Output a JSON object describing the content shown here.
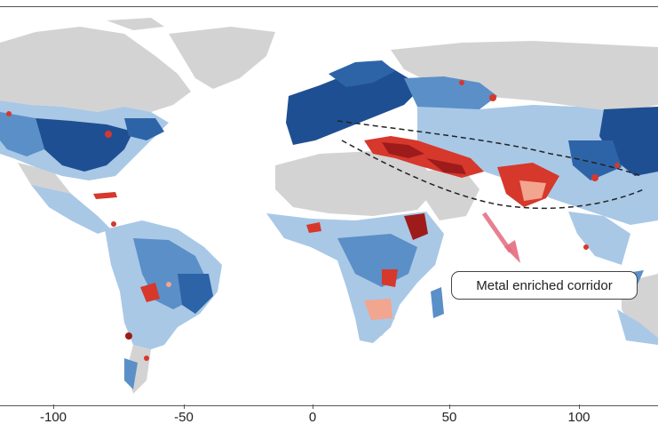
{
  "map": {
    "x_axis_ticks": [
      "-100",
      "-50",
      "0",
      "50",
      "100"
    ],
    "annotation": "Metal enriched corridor"
  },
  "colors": {
    "ocean": "#ffffff",
    "land_nodata": "#d3d3d3",
    "low_dark_blue": "#1f4f93",
    "low_mid_blue": "#5b8fc8",
    "low_light_blue": "#a9c8e6",
    "neutral": "#e8eef5",
    "high_light_red": "#f2a58f",
    "high_red": "#d6382c",
    "high_dark_red": "#9e1b1b",
    "arrow": "#e36b7e",
    "corridor_line": "#222222"
  }
}
